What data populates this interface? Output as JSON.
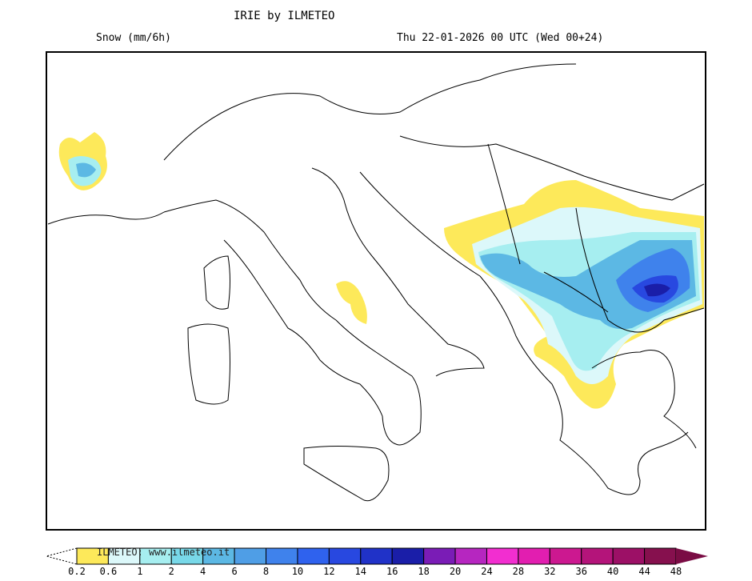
{
  "header": {
    "title": "IRIE by ILMETEO",
    "variable": "Snow (mm/6h)",
    "valid_time": "Thu 22-01-2026 00 UTC (Wed 00+24)"
  },
  "colorbar": {
    "watermark": "ILMETEO: www.ilmeteo.it",
    "labels": [
      "0.2",
      "0.6",
      "1",
      "2",
      "4",
      "6",
      "8",
      "10",
      "12",
      "14",
      "16",
      "18",
      "20",
      "24",
      "28",
      "32",
      "36",
      "40",
      "44",
      "48"
    ],
    "colors": [
      "#fde95a",
      "#dcf8fa",
      "#a6eef0",
      "#78d8e8",
      "#5cb8e4",
      "#4f9ee6",
      "#3f82ec",
      "#2f62ee",
      "#2848e0",
      "#2032c8",
      "#1a1ea8",
      "#7a1cb6",
      "#b626c0",
      "#f22ed0",
      "#e21eb0",
      "#cc1890",
      "#b4147a",
      "#9c1066",
      "#86104e"
    ],
    "over_color": "#7a0c44"
  },
  "map": {
    "border_color": "#000000",
    "regions": [
      "Italy",
      "Balkans",
      "Greece",
      "Corsica",
      "Sardinia",
      "Sicily"
    ]
  }
}
